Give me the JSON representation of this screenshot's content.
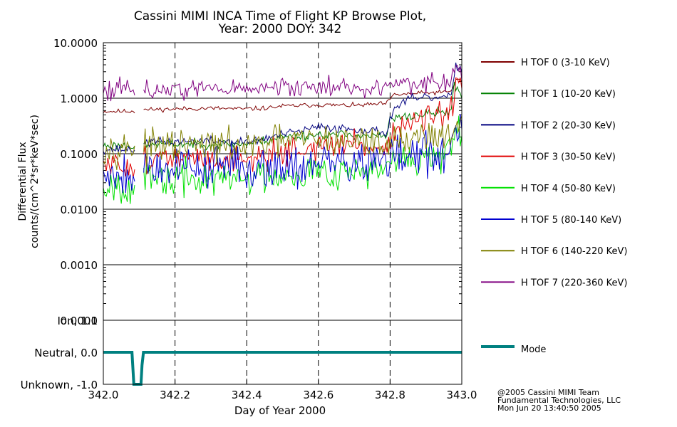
{
  "chart_data": {
    "type": "line",
    "title_line1": "Cassini MIMI INCA Time of Flight KP Browse Plot,",
    "title_line2": "Year: 2000 DOY: 342",
    "ylabel_line1": "Differential Flux",
    "ylabel_line2": "counts/(cm^2*sr*keV*sec)",
    "xlabel": "Day of Year 2000",
    "xlim": [
      342.0,
      343.0
    ],
    "x_ticks": [
      "342.0",
      "342.2",
      "342.4",
      "342.6",
      "342.8",
      "343.0"
    ],
    "x_tick_values": [
      342.0,
      342.2,
      342.4,
      342.6,
      342.8,
      343.0
    ],
    "y_scale": "log",
    "ylim": [
      0.0001,
      10.0
    ],
    "y_ticks": [
      "10.0000",
      "1.0000",
      "0.1000",
      "0.0100",
      "0.0010",
      "0.0001"
    ],
    "y_tick_values": [
      10.0,
      1.0,
      0.1,
      0.01,
      0.001,
      0.0001
    ],
    "data_gap": [
      342.09,
      342.11
    ],
    "series": [
      {
        "name": "H TOF 0 (3-10 KeV)",
        "color": "#7f0000",
        "amp": 0.02,
        "seed": 11,
        "points": [
          [
            342.0,
            0.58
          ],
          [
            342.09,
            0.58
          ],
          [
            342.11,
            0.62
          ],
          [
            342.3,
            0.66
          ],
          [
            342.4,
            0.64
          ],
          [
            342.45,
            0.66
          ],
          [
            342.5,
            0.72
          ],
          [
            342.6,
            0.76
          ],
          [
            342.7,
            0.74
          ],
          [
            342.79,
            0.8
          ],
          [
            342.81,
            1.15
          ],
          [
            342.9,
            1.25
          ],
          [
            342.97,
            1.3
          ],
          [
            342.985,
            2.3
          ],
          [
            343.0,
            2.0
          ]
        ]
      },
      {
        "name": "H TOF 1 (10-20 KeV)",
        "color": "#008000",
        "amp": 0.04,
        "seed": 23,
        "points": [
          [
            342.0,
            0.14
          ],
          [
            342.09,
            0.14
          ],
          [
            342.11,
            0.15
          ],
          [
            342.2,
            0.15
          ],
          [
            342.4,
            0.15
          ],
          [
            342.5,
            0.2
          ],
          [
            342.6,
            0.22
          ],
          [
            342.7,
            0.22
          ],
          [
            342.79,
            0.2
          ],
          [
            342.8,
            0.42
          ],
          [
            342.9,
            0.52
          ],
          [
            342.97,
            0.58
          ],
          [
            342.98,
            1.8
          ],
          [
            343.0,
            1.1
          ]
        ]
      },
      {
        "name": "H TOF 2 (20-30 KeV)",
        "color": "#00007f",
        "amp": 0.04,
        "seed": 37,
        "points": [
          [
            342.0,
            0.12
          ],
          [
            342.09,
            0.12
          ],
          [
            342.11,
            0.16
          ],
          [
            342.3,
            0.17
          ],
          [
            342.4,
            0.16
          ],
          [
            342.5,
            0.22
          ],
          [
            342.6,
            0.3
          ],
          [
            342.7,
            0.28
          ],
          [
            342.79,
            0.24
          ],
          [
            342.81,
            0.65
          ],
          [
            342.85,
            0.95
          ],
          [
            342.9,
            1.0
          ],
          [
            342.97,
            1.05
          ],
          [
            342.985,
            4.0
          ],
          [
            343.0,
            3.2
          ]
        ]
      },
      {
        "name": "H TOF 3 (30-50 KeV)",
        "color": "#e00000",
        "amp": 0.12,
        "seed": 51,
        "points": [
          [
            342.0,
            0.06
          ],
          [
            342.09,
            0.06
          ],
          [
            342.11,
            0.08
          ],
          [
            342.3,
            0.08
          ],
          [
            342.4,
            0.08
          ],
          [
            342.5,
            0.11
          ],
          [
            342.6,
            0.13
          ],
          [
            342.7,
            0.15
          ],
          [
            342.79,
            0.12
          ],
          [
            342.81,
            0.28
          ],
          [
            342.9,
            0.42
          ],
          [
            342.97,
            0.5
          ],
          [
            342.985,
            1.9
          ],
          [
            343.0,
            1.2
          ]
        ]
      },
      {
        "name": "H TOF 4 (50-80 KeV)",
        "color": "#00e000",
        "amp": 0.16,
        "seed": 67,
        "points": [
          [
            342.0,
            0.028
          ],
          [
            342.09,
            0.028
          ],
          [
            342.11,
            0.033
          ],
          [
            342.3,
            0.035
          ],
          [
            342.4,
            0.036
          ],
          [
            342.5,
            0.045
          ],
          [
            342.6,
            0.048
          ],
          [
            342.7,
            0.05
          ],
          [
            342.79,
            0.048
          ],
          [
            342.81,
            0.072
          ],
          [
            342.9,
            0.085
          ],
          [
            342.97,
            0.095
          ],
          [
            342.985,
            0.25
          ],
          [
            343.0,
            0.2
          ]
        ]
      },
      {
        "name": "H TOF 5 (80-140 KeV)",
        "color": "#0000d0",
        "amp": 0.2,
        "seed": 79,
        "points": [
          [
            342.0,
            0.045
          ],
          [
            342.09,
            0.045
          ],
          [
            342.11,
            0.06
          ],
          [
            342.3,
            0.06
          ],
          [
            342.4,
            0.058
          ],
          [
            342.5,
            0.062
          ],
          [
            342.6,
            0.065
          ],
          [
            342.7,
            0.07
          ],
          [
            342.79,
            0.068
          ],
          [
            342.81,
            0.085
          ],
          [
            342.9,
            0.1
          ],
          [
            342.97,
            0.1
          ],
          [
            342.985,
            0.27
          ],
          [
            343.0,
            0.2
          ]
        ]
      },
      {
        "name": "H TOF 6 (140-220 KeV)",
        "color": "#808000",
        "amp": 0.14,
        "seed": 97,
        "points": [
          [
            342.0,
            0.13
          ],
          [
            342.09,
            0.13
          ],
          [
            342.11,
            0.13
          ],
          [
            342.3,
            0.14
          ],
          [
            342.4,
            0.13
          ],
          [
            342.5,
            0.17
          ],
          [
            342.6,
            0.18
          ],
          [
            342.7,
            0.17
          ],
          [
            342.79,
            0.15
          ],
          [
            342.81,
            0.17
          ],
          [
            342.9,
            0.22
          ],
          [
            342.97,
            0.22
          ],
          [
            342.985,
            0.42
          ],
          [
            343.0,
            0.3
          ]
        ]
      },
      {
        "name": "H TOF 7 (220-360 KeV)",
        "color": "#800080",
        "amp": 0.09,
        "seed": 113,
        "points": [
          [
            342.0,
            1.5
          ],
          [
            342.09,
            1.5
          ],
          [
            342.11,
            1.4
          ],
          [
            342.3,
            1.5
          ],
          [
            342.4,
            1.45
          ],
          [
            342.5,
            1.55
          ],
          [
            342.6,
            1.6
          ],
          [
            342.7,
            1.6
          ],
          [
            342.79,
            1.55
          ],
          [
            342.81,
            1.75
          ],
          [
            342.9,
            1.85
          ],
          [
            342.97,
            1.9
          ],
          [
            342.985,
            3.4
          ],
          [
            343.0,
            2.6
          ]
        ]
      }
    ],
    "mode_panel": {
      "legend": "Mode",
      "color": "#008080",
      "ylim": [
        -1.0,
        1.0
      ],
      "y_ticks": [
        "Ion, 1.0",
        "Neutral, 0.0",
        "Unknown, -1.0"
      ],
      "y_tick_values": [
        1.0,
        0.0,
        -1.0
      ],
      "points": [
        [
          342.0,
          0.0
        ],
        [
          342.08,
          0.0
        ],
        [
          342.085,
          -1.0
        ],
        [
          342.105,
          -1.0
        ],
        [
          342.108,
          -0.4
        ],
        [
          342.112,
          0.0
        ],
        [
          343.0,
          0.0
        ]
      ]
    },
    "credit": [
      "@2005 Cassini MIMI Team",
      "Fundamental Technologies, LLC",
      "Mon Jun 20 13:40:50 2005"
    ]
  }
}
